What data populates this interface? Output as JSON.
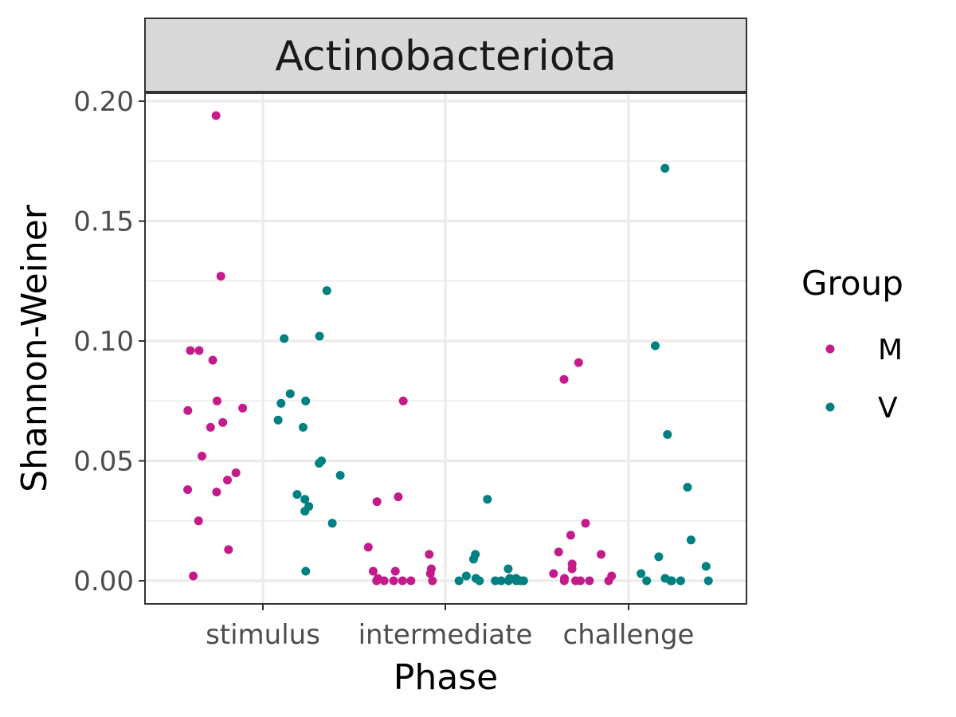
{
  "chart_data": {
    "type": "scatter",
    "facet_title": "Actinobacteriota",
    "xlabel": "Phase",
    "ylabel": "Shannon-Weiner",
    "categories": [
      "stimulus",
      "intermediate",
      "challenge"
    ],
    "ylim": [
      -0.01,
      0.205
    ],
    "yticks": [
      0.0,
      0.05,
      0.1,
      0.15,
      0.2
    ],
    "ytick_labels": [
      "0.00",
      "0.05",
      "0.10",
      "0.15",
      "0.20"
    ],
    "grid": true,
    "legend": {
      "title": "Group",
      "position": "right"
    },
    "series": [
      {
        "name": "M",
        "color": "#C51B8A",
        "points": [
          {
            "phase": "stimulus",
            "y": 0.194
          },
          {
            "phase": "stimulus",
            "y": 0.127
          },
          {
            "phase": "stimulus",
            "y": 0.096
          },
          {
            "phase": "stimulus",
            "y": 0.096
          },
          {
            "phase": "stimulus",
            "y": 0.092
          },
          {
            "phase": "stimulus",
            "y": 0.075
          },
          {
            "phase": "stimulus",
            "y": 0.071
          },
          {
            "phase": "stimulus",
            "y": 0.072
          },
          {
            "phase": "stimulus",
            "y": 0.066
          },
          {
            "phase": "stimulus",
            "y": 0.064
          },
          {
            "phase": "stimulus",
            "y": 0.052
          },
          {
            "phase": "stimulus",
            "y": 0.045
          },
          {
            "phase": "stimulus",
            "y": 0.042
          },
          {
            "phase": "stimulus",
            "y": 0.038
          },
          {
            "phase": "stimulus",
            "y": 0.037
          },
          {
            "phase": "stimulus",
            "y": 0.025
          },
          {
            "phase": "stimulus",
            "y": 0.013
          },
          {
            "phase": "stimulus",
            "y": 0.002
          },
          {
            "phase": "intermediate",
            "y": 0.075
          },
          {
            "phase": "intermediate",
            "y": 0.035
          },
          {
            "phase": "intermediate",
            "y": 0.033
          },
          {
            "phase": "intermediate",
            "y": 0.014
          },
          {
            "phase": "intermediate",
            "y": 0.011
          },
          {
            "phase": "intermediate",
            "y": 0.005
          },
          {
            "phase": "intermediate",
            "y": 0.004
          },
          {
            "phase": "intermediate",
            "y": 0.004
          },
          {
            "phase": "intermediate",
            "y": 0.003
          },
          {
            "phase": "intermediate",
            "y": 0.001
          },
          {
            "phase": "intermediate",
            "y": 0.0
          },
          {
            "phase": "intermediate",
            "y": 0.0
          },
          {
            "phase": "intermediate",
            "y": 0.0
          },
          {
            "phase": "intermediate",
            "y": 0.0
          },
          {
            "phase": "intermediate",
            "y": 0.0
          },
          {
            "phase": "intermediate",
            "y": 0.0
          },
          {
            "phase": "challenge",
            "y": 0.091
          },
          {
            "phase": "challenge",
            "y": 0.084
          },
          {
            "phase": "challenge",
            "y": 0.024
          },
          {
            "phase": "challenge",
            "y": 0.019
          },
          {
            "phase": "challenge",
            "y": 0.012
          },
          {
            "phase": "challenge",
            "y": 0.011
          },
          {
            "phase": "challenge",
            "y": 0.007
          },
          {
            "phase": "challenge",
            "y": 0.005
          },
          {
            "phase": "challenge",
            "y": 0.003
          },
          {
            "phase": "challenge",
            "y": 0.002
          },
          {
            "phase": "challenge",
            "y": 0.001
          },
          {
            "phase": "challenge",
            "y": 0.0
          },
          {
            "phase": "challenge",
            "y": 0.0
          },
          {
            "phase": "challenge",
            "y": 0.0
          },
          {
            "phase": "challenge",
            "y": 0.0
          },
          {
            "phase": "challenge",
            "y": 0.0
          }
        ]
      },
      {
        "name": "V",
        "color": "#008080",
        "points": [
          {
            "phase": "stimulus",
            "y": 0.121
          },
          {
            "phase": "stimulus",
            "y": 0.102
          },
          {
            "phase": "stimulus",
            "y": 0.101
          },
          {
            "phase": "stimulus",
            "y": 0.078
          },
          {
            "phase": "stimulus",
            "y": 0.075
          },
          {
            "phase": "stimulus",
            "y": 0.074
          },
          {
            "phase": "stimulus",
            "y": 0.067
          },
          {
            "phase": "stimulus",
            "y": 0.064
          },
          {
            "phase": "stimulus",
            "y": 0.05
          },
          {
            "phase": "stimulus",
            "y": 0.049
          },
          {
            "phase": "stimulus",
            "y": 0.044
          },
          {
            "phase": "stimulus",
            "y": 0.036
          },
          {
            "phase": "stimulus",
            "y": 0.034
          },
          {
            "phase": "stimulus",
            "y": 0.031
          },
          {
            "phase": "stimulus",
            "y": 0.029
          },
          {
            "phase": "stimulus",
            "y": 0.024
          },
          {
            "phase": "stimulus",
            "y": 0.004
          },
          {
            "phase": "intermediate",
            "y": 0.034
          },
          {
            "phase": "intermediate",
            "y": 0.011
          },
          {
            "phase": "intermediate",
            "y": 0.009
          },
          {
            "phase": "intermediate",
            "y": 0.005
          },
          {
            "phase": "intermediate",
            "y": 0.002
          },
          {
            "phase": "intermediate",
            "y": 0.001
          },
          {
            "phase": "intermediate",
            "y": 0.001
          },
          {
            "phase": "intermediate",
            "y": 0.001
          },
          {
            "phase": "intermediate",
            "y": 0.0
          },
          {
            "phase": "intermediate",
            "y": 0.0
          },
          {
            "phase": "intermediate",
            "y": 0.0
          },
          {
            "phase": "intermediate",
            "y": 0.0
          },
          {
            "phase": "intermediate",
            "y": 0.0
          },
          {
            "phase": "intermediate",
            "y": 0.0
          },
          {
            "phase": "intermediate",
            "y": 0.0
          },
          {
            "phase": "intermediate",
            "y": 0.0
          },
          {
            "phase": "challenge",
            "y": 0.172
          },
          {
            "phase": "challenge",
            "y": 0.098
          },
          {
            "phase": "challenge",
            "y": 0.061
          },
          {
            "phase": "challenge",
            "y": 0.039
          },
          {
            "phase": "challenge",
            "y": 0.017
          },
          {
            "phase": "challenge",
            "y": 0.01
          },
          {
            "phase": "challenge",
            "y": 0.006
          },
          {
            "phase": "challenge",
            "y": 0.003
          },
          {
            "phase": "challenge",
            "y": 0.001
          },
          {
            "phase": "challenge",
            "y": 0.0
          },
          {
            "phase": "challenge",
            "y": 0.0
          },
          {
            "phase": "challenge",
            "y": 0.0
          },
          {
            "phase": "challenge",
            "y": 0.0
          },
          {
            "phase": "challenge",
            "y": 0.0
          }
        ]
      }
    ]
  }
}
